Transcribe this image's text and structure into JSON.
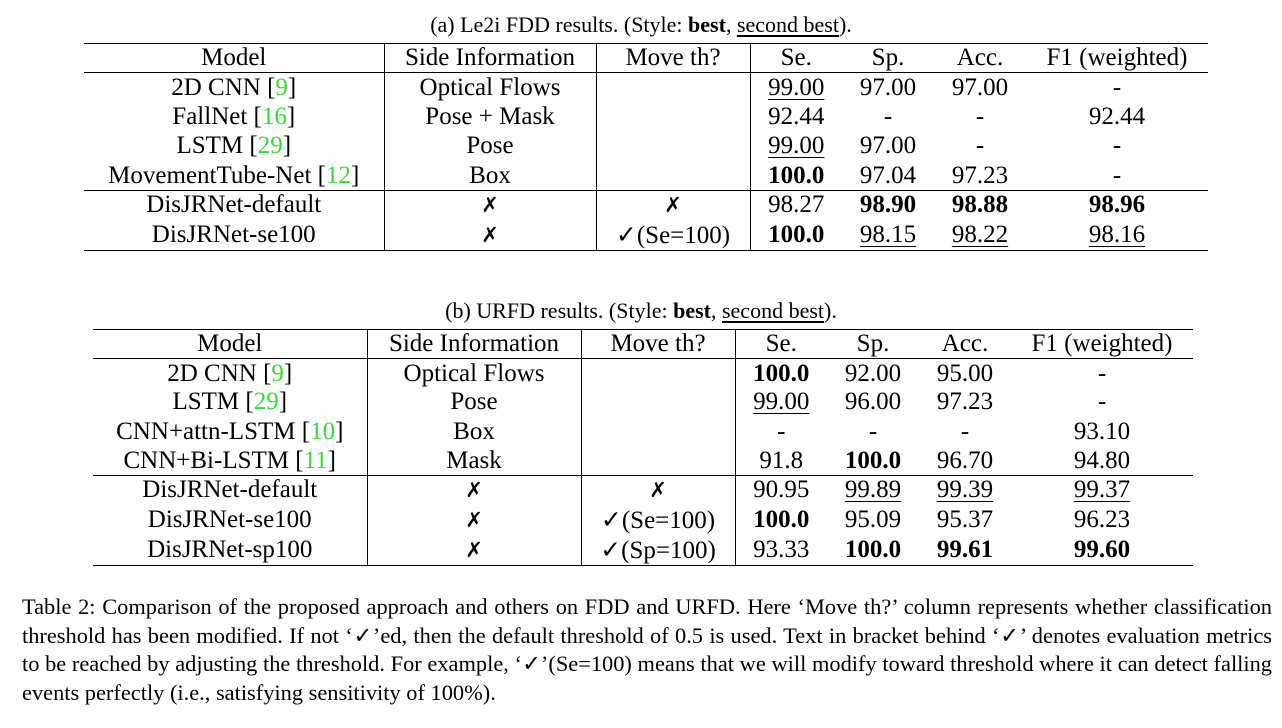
{
  "table_a": {
    "caption_prefix": "(a) Le2i FDD results. (Style: ",
    "caption_best": "best",
    "caption_sep": ", ",
    "caption_second": "second best",
    "caption_suffix": ").",
    "headers": [
      "Model",
      "Side Information",
      "Move th?",
      "Se.",
      "Sp.",
      "Acc.",
      "F1 (weighted)"
    ],
    "rows": [
      {
        "model": "2D CNN [",
        "cite": "9",
        "close": "]",
        "side": "Optical Flows",
        "move": "",
        "se": "99.00",
        "sp": "97.00",
        "acc": "97.00",
        "f1": "-"
      },
      {
        "model": "FallNet [",
        "cite": "16",
        "close": "]",
        "side": "Pose + Mask",
        "move": "",
        "se": "92.44",
        "sp": "-",
        "acc": "-",
        "f1": "92.44"
      },
      {
        "model": "LSTM [",
        "cite": "29",
        "close": "]",
        "side": "Pose",
        "move": "",
        "se": "99.00",
        "sp": "97.00",
        "acc": "-",
        "f1": "-"
      },
      {
        "model": "MovementTube-Net [",
        "cite": "12",
        "close": "]",
        "side": "Box",
        "move": "",
        "se": "100.0",
        "sp": "97.04",
        "acc": "97.23",
        "f1": "-"
      },
      {
        "model": "DisJRNet-default",
        "side": "✗",
        "move": "✗",
        "se": "98.27",
        "sp": "98.90",
        "acc": "98.88",
        "f1": "98.96"
      },
      {
        "model": "DisJRNet-se100",
        "side": "✗",
        "move": "✓(Se=100)",
        "se": "100.0",
        "sp": "98.15",
        "acc": "98.22",
        "f1": "98.16"
      }
    ]
  },
  "table_b": {
    "caption_prefix": "(b) URFD results. (Style: ",
    "caption_best": "best",
    "caption_sep": ", ",
    "caption_second": "second best",
    "caption_suffix": ").",
    "headers": [
      "Model",
      "Side Information",
      "Move th?",
      "Se.",
      "Sp.",
      "Acc.",
      "F1 (weighted)"
    ],
    "rows": [
      {
        "model": "2D CNN [",
        "cite": "9",
        "close": "]",
        "side": "Optical Flows",
        "move": "",
        "se": "100.0",
        "sp": "92.00",
        "acc": "95.00",
        "f1": "-"
      },
      {
        "model": "LSTM [",
        "cite": "29",
        "close": "]",
        "side": "Pose",
        "move": "",
        "se": "99.00",
        "sp": "96.00",
        "acc": "97.23",
        "f1": "-"
      },
      {
        "model": "CNN+attn-LSTM [",
        "cite": "10",
        "close": "]",
        "side": "Box",
        "move": "",
        "se": "-",
        "sp": "-",
        "acc": "-",
        "f1": "93.10"
      },
      {
        "model": "CNN+Bi-LSTM [",
        "cite": "11",
        "close": "]",
        "side": "Mask",
        "move": "",
        "se": "91.8",
        "sp": "100.0",
        "acc": "96.70",
        "f1": "94.80"
      },
      {
        "model": "DisJRNet-default",
        "side": "✗",
        "move": "✗",
        "se": "90.95",
        "sp": "99.89",
        "acc": "99.39",
        "f1": "99.37"
      },
      {
        "model": "DisJRNet-se100",
        "side": "✗",
        "move": "✓(Se=100)",
        "se": "100.0",
        "sp": "95.09",
        "acc": "95.37",
        "f1": "96.23"
      },
      {
        "model": "DisJRNet-sp100",
        "side": "✗",
        "move": "✓(Sp=100)",
        "se": "93.33",
        "sp": "100.0",
        "acc": "99.61",
        "f1": "99.60"
      }
    ]
  },
  "footer_caption": "Table 2: Comparison of the proposed approach and others on FDD and URFD. Here ‘Move th?’ column represents whether classification threshold has been modified. If not ‘✓’ed, then the default threshold of 0.5 is used. Text in bracket behind ‘✓’ denotes evaluation metrics to be reached by adjusting the threshold. For example, ‘✓’(Se=100) means that we will modify toward threshold where it can detect falling events perfectly (i.e., satisfying sensitivity of 100%)."
}
